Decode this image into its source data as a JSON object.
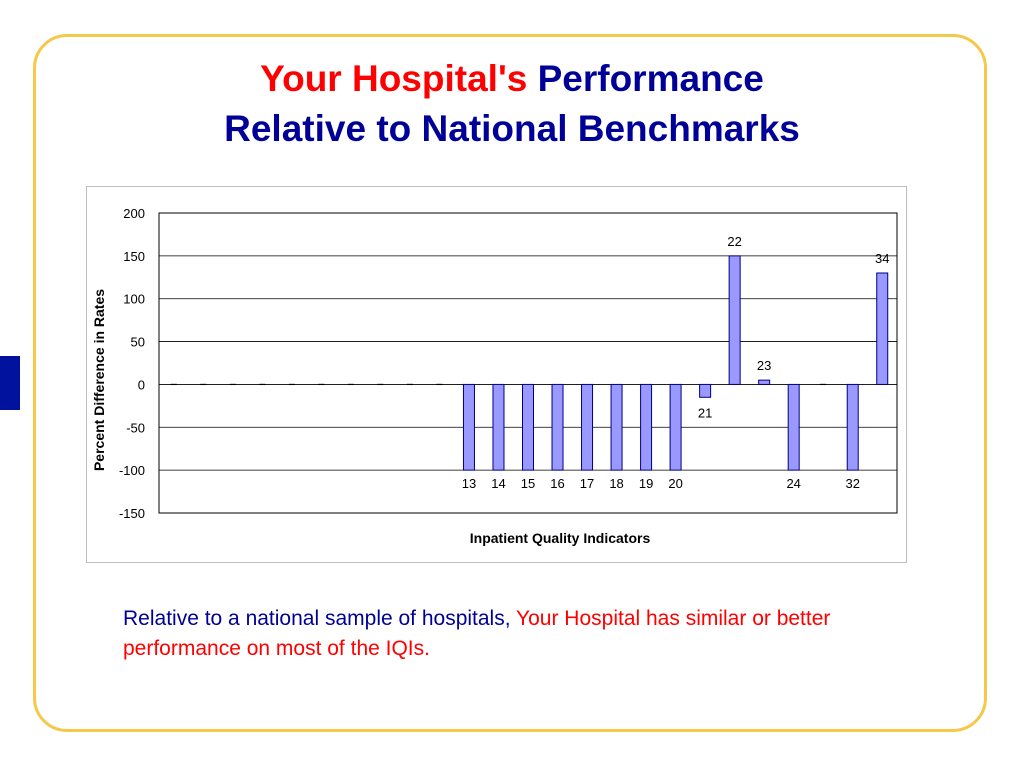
{
  "slide": {
    "title_part_red": "Your Hospital's",
    "title_part_blue": "Performance",
    "title_line2": "Relative to National Benchmarks",
    "caption_blue": "Relative to a national sample of hospitals,",
    "caption_red": "Your Hospital has similar or better performance on most of the IQIs."
  },
  "colors": {
    "title_blue": "#000099",
    "title_red": "#ff0000",
    "frame_border": "#f6c84a",
    "side_tab": "#00129e",
    "bar_fill": "#9999ff",
    "bar_stroke": "#000080"
  },
  "chart_data": {
    "type": "bar",
    "title": "",
    "xlabel": "Inpatient Quality Indicators",
    "ylabel": "Percent Difference in Rates",
    "ylim": [
      -150,
      200
    ],
    "yticks": [
      "200",
      "150",
      "100",
      "50",
      "0",
      "-50",
      "-100",
      "-150"
    ],
    "grid": true,
    "legend": "none",
    "categories": [
      "",
      "",
      "",
      "",
      "",
      "",
      "",
      "",
      "",
      "",
      "13",
      "14",
      "15",
      "16",
      "17",
      "18",
      "19",
      "20",
      "21",
      "22",
      "23",
      "24",
      "",
      "32",
      "34"
    ],
    "values": [
      0,
      0,
      0,
      0,
      0,
      0,
      0,
      0,
      0,
      0,
      -100,
      -100,
      -100,
      -100,
      -100,
      -100,
      -100,
      -100,
      -15,
      150,
      5,
      -100,
      0,
      -100,
      130
    ]
  }
}
